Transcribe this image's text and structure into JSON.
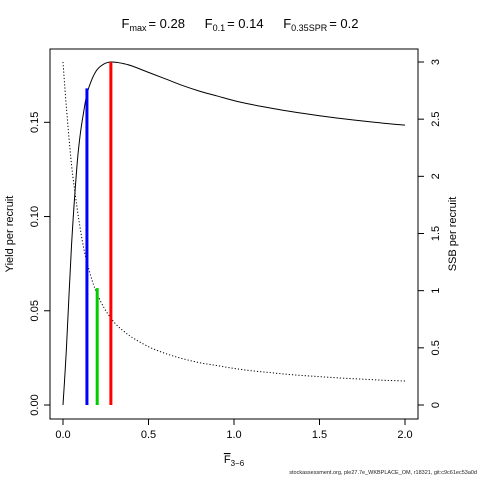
{
  "chart_data": {
    "type": "line",
    "title": {
      "fmax_label": "F",
      "fmax_sub": "max",
      "fmax_value": "= 0.28",
      "f01_label": "F",
      "f01_sub": "0.1",
      "f01_value": "= 0.14",
      "fspr_label": "F",
      "fspr_sub": "0.35SPR",
      "fspr_value": "= 0.2"
    },
    "xlabel": {
      "main": "F",
      "sub": "3−6"
    },
    "ylabel": "Yield per recruit",
    "y2label": "SSB per recruit",
    "xlim": [
      0,
      2
    ],
    "ylim": [
      0,
      0.182
    ],
    "y2lim": [
      0,
      3.0
    ],
    "xticks": [
      "0.0",
      "0.5",
      "1.0",
      "1.5",
      "2.0"
    ],
    "xtick_values": [
      0,
      0.5,
      1.0,
      1.5,
      2.0
    ],
    "yticks": [
      "0.00",
      "0.05",
      "0.10",
      "0.15"
    ],
    "ytick_values": [
      0,
      0.05,
      0.1,
      0.15
    ],
    "y2ticks": [
      "0",
      "0.5",
      "1",
      "1.5",
      "2",
      "2.5",
      "3"
    ],
    "y2tick_values": [
      0,
      0.5,
      1.0,
      1.5,
      2.0,
      2.5,
      3.0
    ],
    "series": [
      {
        "axis": "left",
        "style": "solid",
        "color": "#000000",
        "x": [
          0,
          0.02,
          0.05,
          0.08,
          0.1,
          0.12,
          0.14,
          0.17,
          0.2,
          0.24,
          0.28,
          0.32,
          0.36,
          0.4,
          0.5,
          0.6,
          0.7,
          0.8,
          0.9,
          1.0,
          1.1,
          1.2,
          1.3,
          1.4,
          1.5,
          1.6,
          1.7,
          1.8,
          1.9,
          2.0
        ],
        "y": [
          0,
          0.03,
          0.085,
          0.125,
          0.143,
          0.155,
          0.165,
          0.173,
          0.178,
          0.181,
          0.182,
          0.1817,
          0.181,
          0.18,
          0.1765,
          0.173,
          0.1695,
          0.1665,
          0.164,
          0.1615,
          0.1595,
          0.1578,
          0.1562,
          0.1548,
          0.1535,
          0.1523,
          0.1512,
          0.1502,
          0.1493,
          0.1485
        ]
      },
      {
        "axis": "right",
        "style": "dotted",
        "color": "#000000",
        "x": [
          0,
          0.02,
          0.05,
          0.08,
          0.1,
          0.12,
          0.14,
          0.17,
          0.2,
          0.24,
          0.28,
          0.32,
          0.36,
          0.4,
          0.5,
          0.6,
          0.7,
          0.8,
          0.9,
          1.0,
          1.1,
          1.2,
          1.3,
          1.4,
          1.5,
          1.6,
          1.7,
          1.8,
          1.9,
          2.0
        ],
        "y": [
          3.0,
          2.6,
          2.1,
          1.75,
          1.55,
          1.38,
          1.25,
          1.09,
          0.97,
          0.85,
          0.76,
          0.69,
          0.64,
          0.595,
          0.51,
          0.45,
          0.405,
          0.37,
          0.345,
          0.32,
          0.3,
          0.285,
          0.27,
          0.258,
          0.248,
          0.238,
          0.23,
          0.222,
          0.215,
          0.21
        ]
      }
    ],
    "reference_lines": [
      {
        "name": "F0.1",
        "x": 0.14,
        "y": 0.168,
        "color": "#0000ff"
      },
      {
        "name": "F0.35SPR",
        "x": 0.2,
        "y": 0.062,
        "color": "#00cc00"
      },
      {
        "name": "Fmax",
        "x": 0.28,
        "y": 0.182,
        "color": "#ff0000"
      }
    ],
    "grid": false,
    "legend": "none"
  },
  "footer": "stockassessment.org, ple27.7e_WKBPLACE_OM, r18321, git:c9c61ec53a0d"
}
